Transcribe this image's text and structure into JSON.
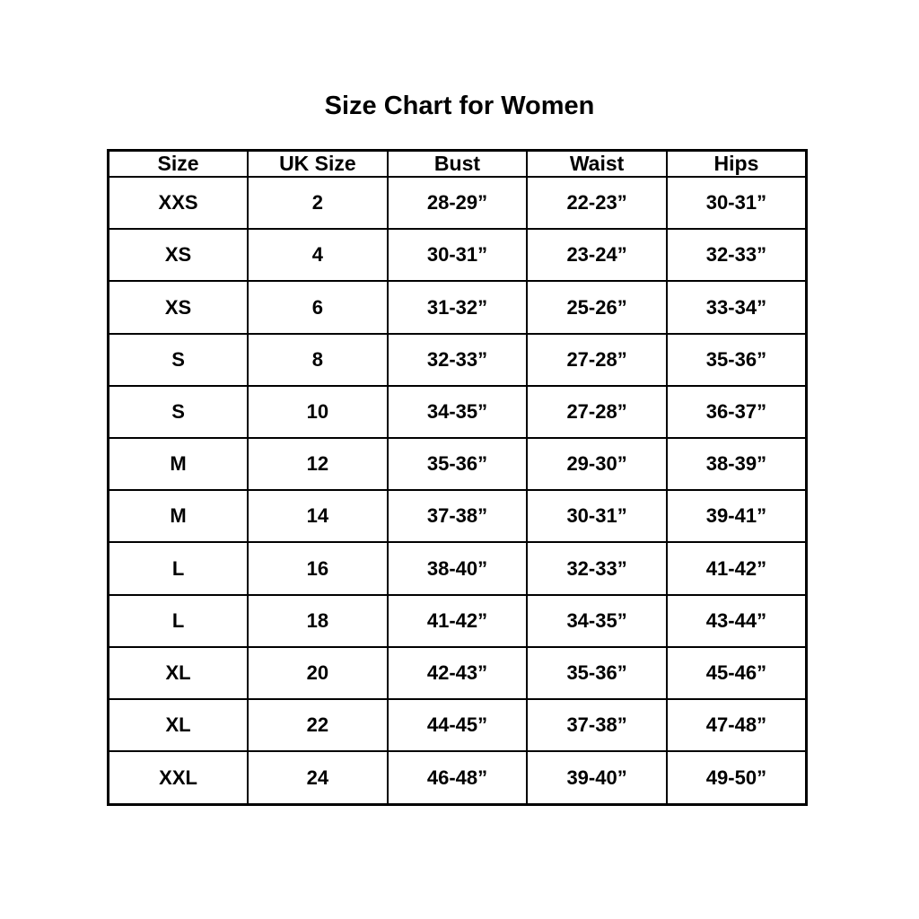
{
  "title": "Size Chart for Women",
  "colors": {
    "background": "#ffffff",
    "text": "#000000",
    "border": "#000000"
  },
  "chart_data": {
    "type": "table",
    "title": "Size Chart for Women",
    "columns": [
      "Size",
      "UK Size",
      "Bust",
      "Waist",
      "Hips"
    ],
    "rows": [
      [
        "XXS",
        "2",
        "28-29”",
        "22-23”",
        "30-31”"
      ],
      [
        "XS",
        "4",
        "30-31”",
        "23-24”",
        "32-33”"
      ],
      [
        "XS",
        "6",
        "31-32”",
        "25-26”",
        "33-34”"
      ],
      [
        "S",
        "8",
        "32-33”",
        "27-28”",
        "35-36”"
      ],
      [
        "S",
        "10",
        "34-35”",
        "27-28”",
        "36-37”"
      ],
      [
        "M",
        "12",
        "35-36”",
        "29-30”",
        "38-39”"
      ],
      [
        "M",
        "14",
        "37-38”",
        "30-31”",
        "39-41”"
      ],
      [
        "L",
        "16",
        "38-40”",
        "32-33”",
        "41-42”"
      ],
      [
        "L",
        "18",
        "41-42”",
        "34-35”",
        "43-44”"
      ],
      [
        "XL",
        "20",
        "42-43”",
        "35-36”",
        "45-46”"
      ],
      [
        "XL",
        "22",
        "44-45”",
        "37-38”",
        "47-48”"
      ],
      [
        "XXL",
        "24",
        "46-48”",
        "39-40”",
        "49-50”"
      ]
    ],
    "layout": {
      "grid": true,
      "header_row": true,
      "columns_equal_width": true
    }
  }
}
